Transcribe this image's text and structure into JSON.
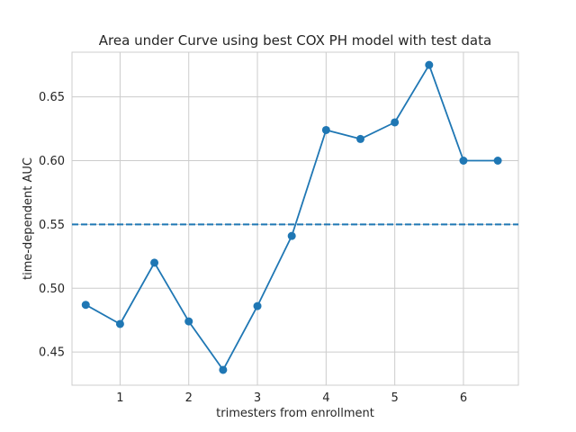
{
  "chart_data": {
    "type": "line",
    "title": "Area under Curve using best COX PH model with test data",
    "xlabel": "trimesters from enrollment",
    "ylabel": "time-dependent AUC",
    "xlim": [
      0.3,
      6.8
    ],
    "ylim": [
      0.424,
      0.685
    ],
    "xticks": [
      1,
      2,
      3,
      4,
      5,
      6
    ],
    "yticks": [
      0.45,
      0.5,
      0.55,
      0.6,
      0.65
    ],
    "ytick_labels": [
      "0.45",
      "0.50",
      "0.55",
      "0.60",
      "0.65"
    ],
    "grid": true,
    "series": [
      {
        "x": [
          0.5,
          1.0,
          1.5,
          2.0,
          2.5,
          3.0,
          3.5,
          4.0,
          4.5,
          5.0,
          5.5,
          6.0,
          6.5
        ],
        "y": [
          0.487,
          0.472,
          0.52,
          0.474,
          0.436,
          0.486,
          0.541,
          0.624,
          0.617,
          0.63,
          0.675,
          0.6,
          0.6
        ],
        "color": "#1f77b4",
        "marker": "circle"
      }
    ],
    "reference_line": {
      "y": 0.55,
      "style": "dashed",
      "color": "#1f77b4"
    }
  }
}
